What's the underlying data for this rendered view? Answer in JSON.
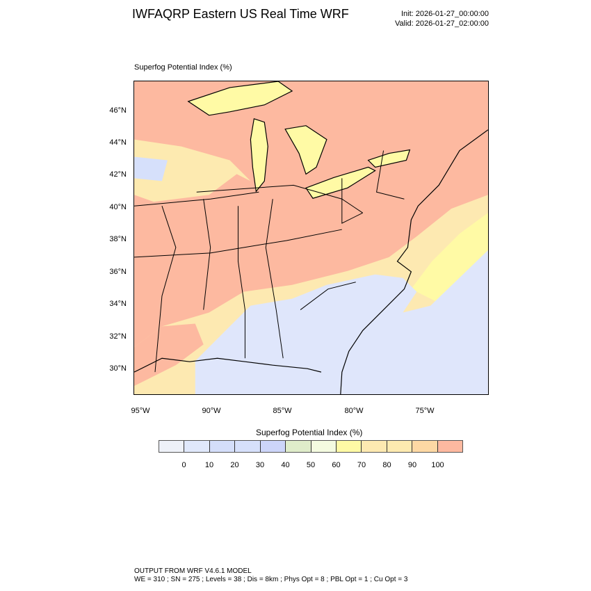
{
  "header": {
    "title": "IWFAQRP Eastern US Real Time WRF",
    "init": "Init: 2026-01-27_00:00:00",
    "valid": "Valid: 2026-01-27_02:00:00"
  },
  "map": {
    "field_label": "Superfog Potential Index   (%)",
    "lat_labels": [
      "30°N",
      "32°N",
      "34°N",
      "36°N",
      "38°N",
      "40°N",
      "42°N",
      "44°N",
      "46°N"
    ],
    "lon_labels": [
      "95°W",
      "90°W",
      "85°W",
      "80°W",
      "75°W"
    ]
  },
  "colorbar": {
    "title": "Superfog Potential Index  (%)",
    "colors": [
      "#eef1f8",
      "#e0e8fb",
      "#d4defa",
      "#d6e0fb",
      "#cdd5f9",
      "#dfecca",
      "#f4fbe0",
      "#fffaa5",
      "#fde9b1",
      "#fdeab0",
      "#fdd8a4",
      "#fdb9a0"
    ],
    "labels": [
      "0",
      "10",
      "20",
      "30",
      "40",
      "50",
      "60",
      "70",
      "80",
      "90",
      "100"
    ]
  },
  "footer": {
    "line1": "OUTPUT FROM WRF V4.6.1 MODEL",
    "line2": "WE = 310 ; SN = 275 ; Levels = 38 ; Dis = 8km ; Phys Opt = 8 ; PBL Opt = 1 ; Cu Opt = 3"
  }
}
